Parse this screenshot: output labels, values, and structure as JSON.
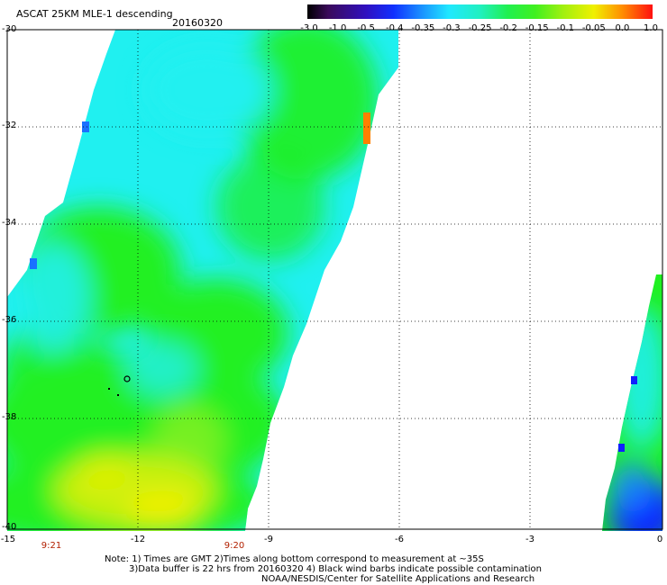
{
  "header": {
    "title": "ASCAT 25KM MLE-1 descending",
    "date": "20160320"
  },
  "colorbar": {
    "labels": [
      "-3.0",
      "-1.0",
      "-0.5",
      "-0.4",
      "-0.35",
      "-0.3",
      "-0.25",
      "-0.2",
      "-0.15",
      "-0.1",
      "-0.05",
      "0.0",
      "1.0"
    ]
  },
  "axes": {
    "lat_labels": [
      "-30",
      "-32",
      "-34",
      "-36",
      "-38",
      "-40"
    ],
    "lon_labels": [
      "-15",
      "-12",
      "-9",
      "-6",
      "-3",
      "0"
    ],
    "time_labels": [
      "9:21",
      "9:20"
    ]
  },
  "notes": {
    "line1": "Note: 1) Times are GMT 2)Times along bottom correspond to measurement at ~35S",
    "line2": "3)Data buffer is 22 hrs from 20160320 4) Black wind barbs indicate possible contamination",
    "line3": "NOAA/NESDIS/Center for Satellite Applications and Research"
  },
  "colors": {
    "purple": "#3a0a5a",
    "blue": "#1020ff",
    "cyan": "#20f0f0",
    "green": "#20f020",
    "yellow": "#f0f000",
    "orange": "#ff8000",
    "red": "#ff1010"
  }
}
